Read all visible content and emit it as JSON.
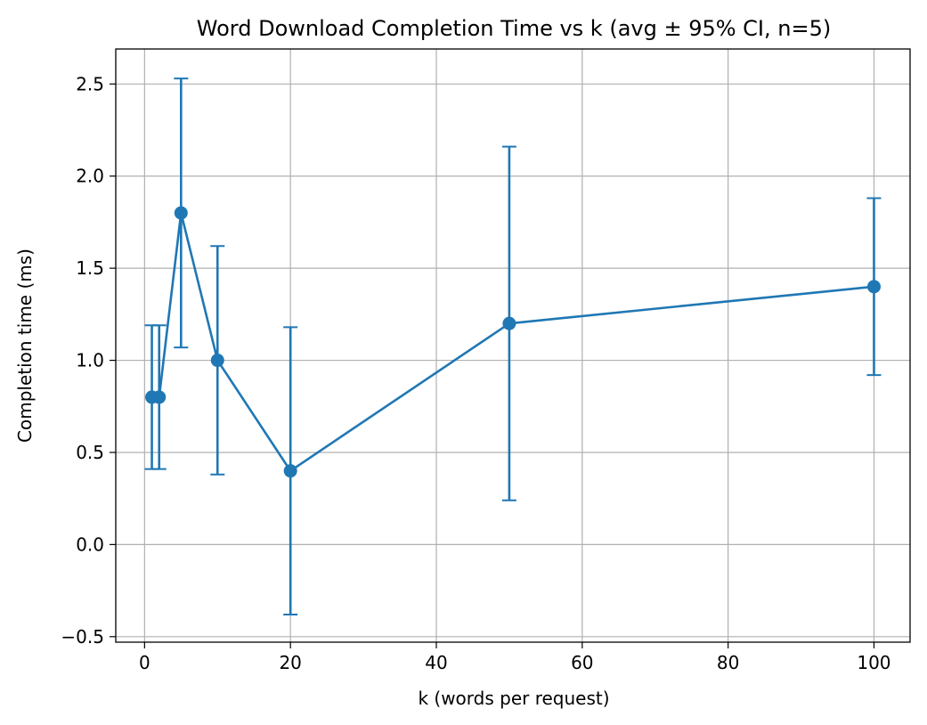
{
  "chart_data": {
    "type": "line",
    "title": "Word Download Completion Time vs k (avg ± 95% CI, n=5)",
    "xlabel": "k (words per request)",
    "ylabel": "Completion time (ms)",
    "xlim": [
      -3.95,
      104.95
    ],
    "ylim": [
      -0.53,
      2.69
    ],
    "x_ticks": [
      0,
      20,
      40,
      60,
      80,
      100
    ],
    "x_tick_labels": [
      "0",
      "20",
      "40",
      "60",
      "80",
      "100"
    ],
    "y_ticks": [
      -0.5,
      0.0,
      0.5,
      1.0,
      1.5,
      2.0,
      2.5
    ],
    "y_tick_labels": [
      "−0.5",
      "0.0",
      "0.5",
      "1.0",
      "1.5",
      "2.0",
      "2.5"
    ],
    "grid": true,
    "color": "#1f77b4",
    "series": [
      {
        "x": [
          1,
          2,
          5,
          10,
          20,
          50,
          100
        ],
        "y": [
          0.8,
          0.8,
          1.8,
          1.0,
          0.4,
          1.2,
          1.4
        ],
        "ci_low": [
          0.41,
          0.41,
          1.07,
          0.38,
          -0.38,
          0.24,
          0.92
        ],
        "ci_high": [
          1.19,
          1.19,
          2.53,
          1.62,
          1.18,
          2.16,
          1.88
        ]
      }
    ]
  }
}
